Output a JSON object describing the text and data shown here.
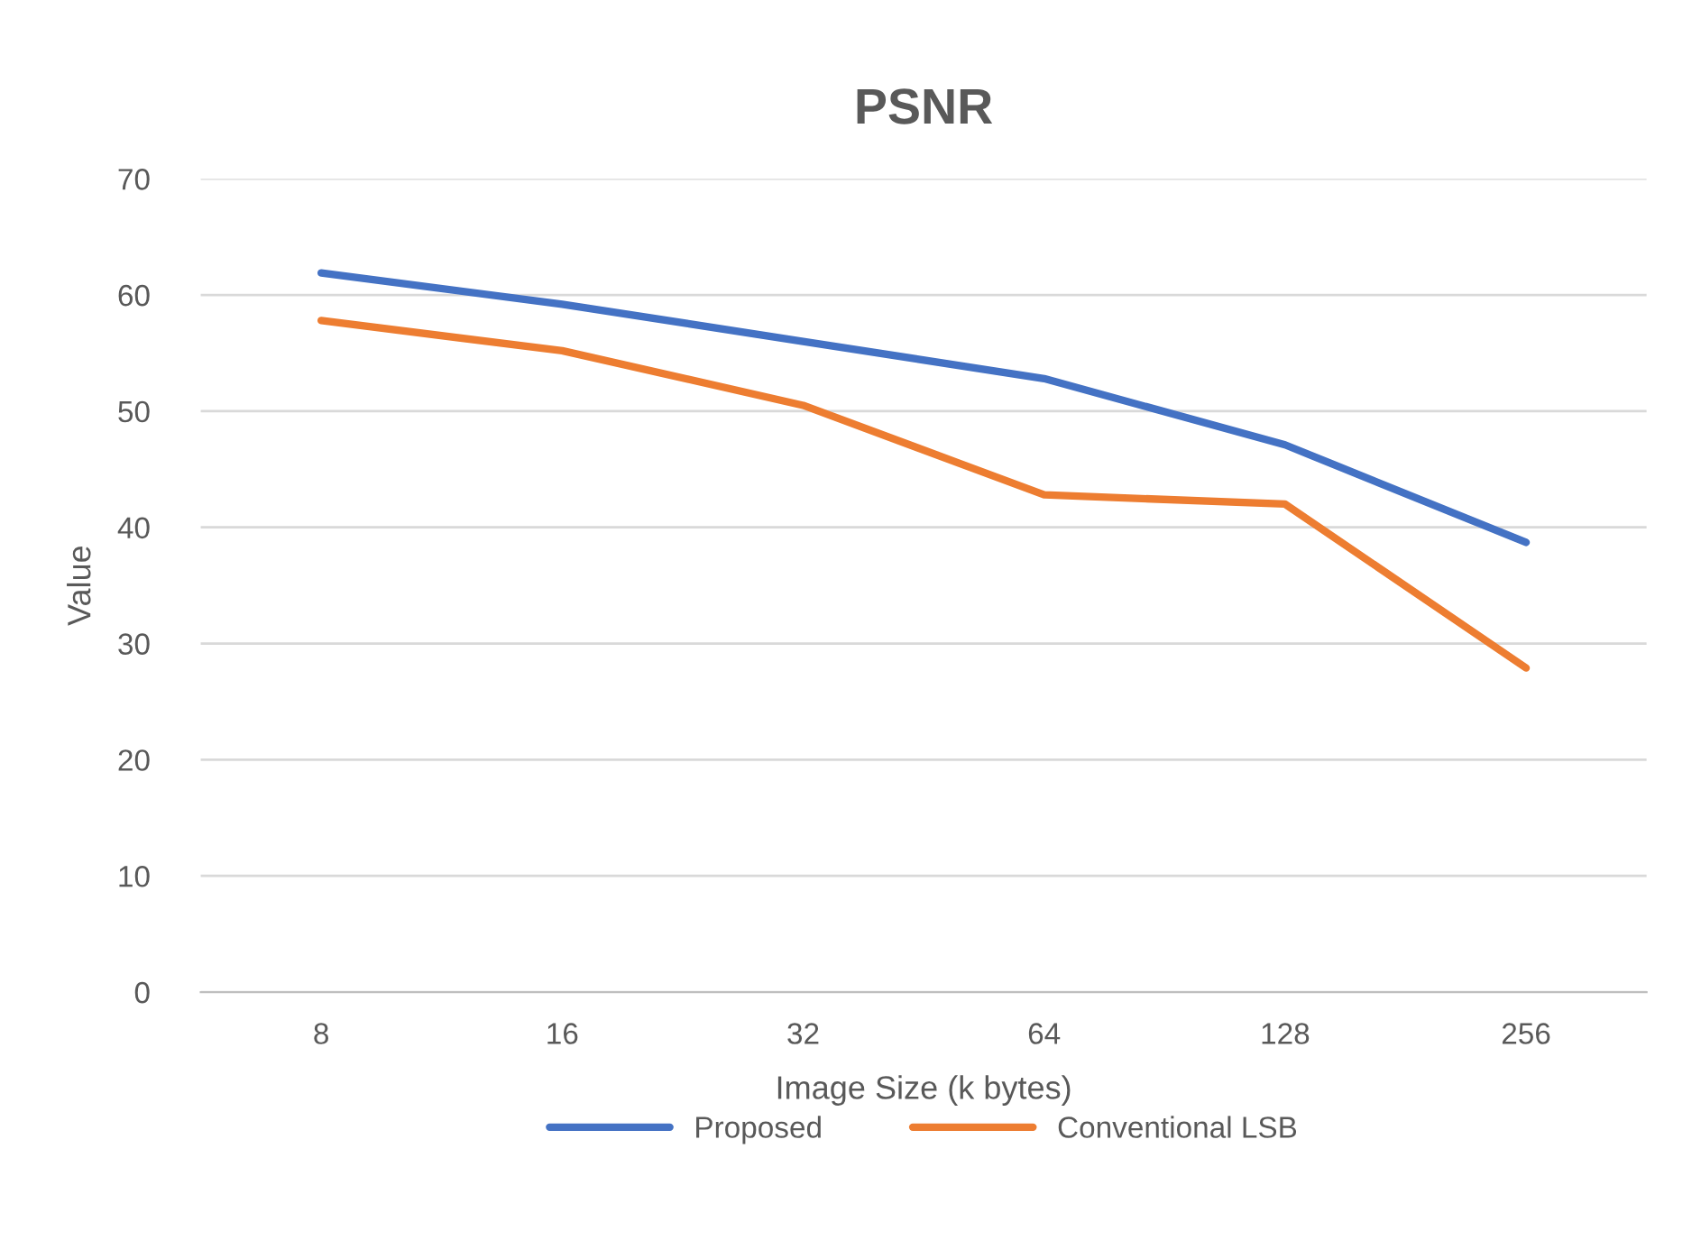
{
  "chart_data": {
    "type": "line",
    "title": "PSNR",
    "xlabel": "Image Size (k bytes)",
    "ylabel": "Value",
    "categories": [
      "8",
      "16",
      "32",
      "64",
      "128",
      "256"
    ],
    "series": [
      {
        "name": "Proposed",
        "color": "#4472c4",
        "values": [
          61.9,
          59.2,
          56.0,
          52.8,
          47.1,
          38.7
        ]
      },
      {
        "name": "Conventional LSB",
        "color": "#ed7d31",
        "values": [
          57.8,
          55.2,
          50.5,
          42.8,
          42.0,
          27.9
        ]
      }
    ],
    "ylim": [
      0,
      70
    ],
    "yticks": [
      0,
      10,
      20,
      30,
      40,
      50,
      60,
      70
    ],
    "grid": "y",
    "legend": "bottom",
    "marker": "none",
    "line_style": "solid"
  }
}
